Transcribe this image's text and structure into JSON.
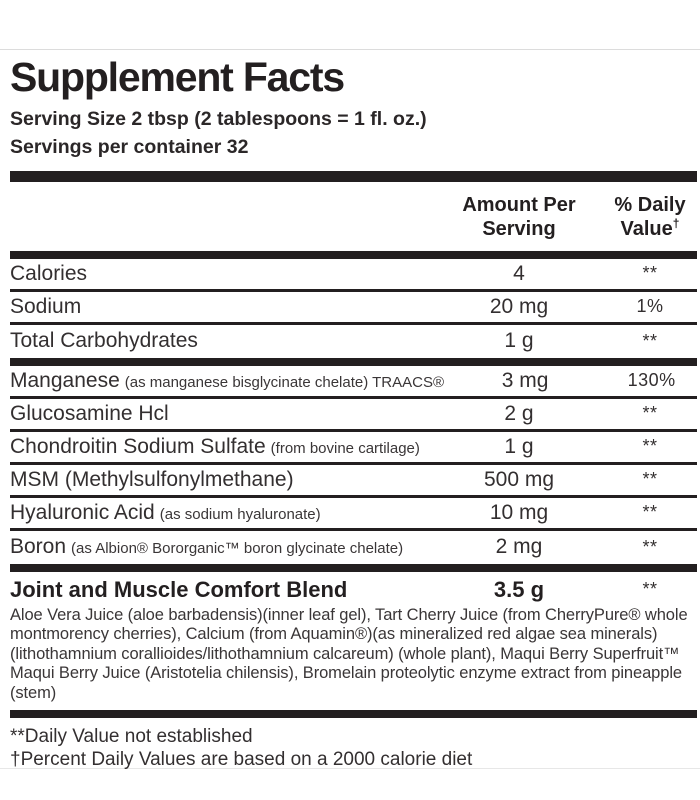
{
  "colors": {
    "text": "#231f20",
    "rule": "#231f20",
    "faint_line": "#dcdcdc"
  },
  "header": {
    "title": "Supplement Facts",
    "serving_size": "Serving Size 2 tbsp (2 tablespoons = 1 fl. oz.)",
    "servings_per_container": "Servings per container 32"
  },
  "columns": {
    "amount_line1": "Amount Per",
    "amount_line2": "Serving",
    "dv_line1": "% Daily",
    "dv_line2": "Value",
    "dv_dagger": "†"
  },
  "rows": [
    {
      "name": "Calories",
      "detail": "",
      "amount": "4",
      "dv": "**"
    },
    {
      "name": "Sodium",
      "detail": "",
      "amount": "20 mg",
      "dv": "1%"
    },
    {
      "name": "Total Carbohydrates",
      "detail": "",
      "amount": "1 g",
      "dv": "**"
    },
    {
      "name": "Manganese",
      "detail": "(as manganese bisglycinate chelate) TRAACS®",
      "amount": "3 mg",
      "dv": "130%"
    },
    {
      "name": "Glucosamine Hcl",
      "detail": "",
      "amount": "2 g",
      "dv": "**"
    },
    {
      "name": "Chondroitin Sodium Sulfate",
      "detail": "(from bovine cartilage)",
      "amount": "1 g",
      "dv": "**"
    },
    {
      "name": "MSM (Methylsulfonylmethane)",
      "detail": "",
      "amount": "500 mg",
      "dv": "**"
    },
    {
      "name": "Hyaluronic Acid",
      "detail": "(as sodium hyaluronate)",
      "amount": "10 mg",
      "dv": "**"
    },
    {
      "name": "Boron",
      "detail": "(as Albion® Bororganic™ boron glycinate chelate)",
      "amount": "2 mg",
      "dv": "**"
    }
  ],
  "blend": {
    "name": "Joint and Muscle Comfort Blend",
    "amount": "3.5 g",
    "dv": "**",
    "description": "Aloe Vera Juice (aloe barbadensis)(inner leaf gel), Tart Cherry Juice (from CherryPure® whole montmorency cherries), Calcium (from Aquamin®)(as mineralized red algae sea minerals)(lithothamnium corallioides/lithothamnium calcareum) (whole plant), Maqui Berry Superfruit™ Maqui Berry Juice (Aristotelia chilensis), Bromelain proteolytic enzyme extract from pineapple (stem)"
  },
  "footnotes": [
    "**Daily Value not established",
    "†Percent Daily Values are based on a 2000 calorie diet"
  ]
}
